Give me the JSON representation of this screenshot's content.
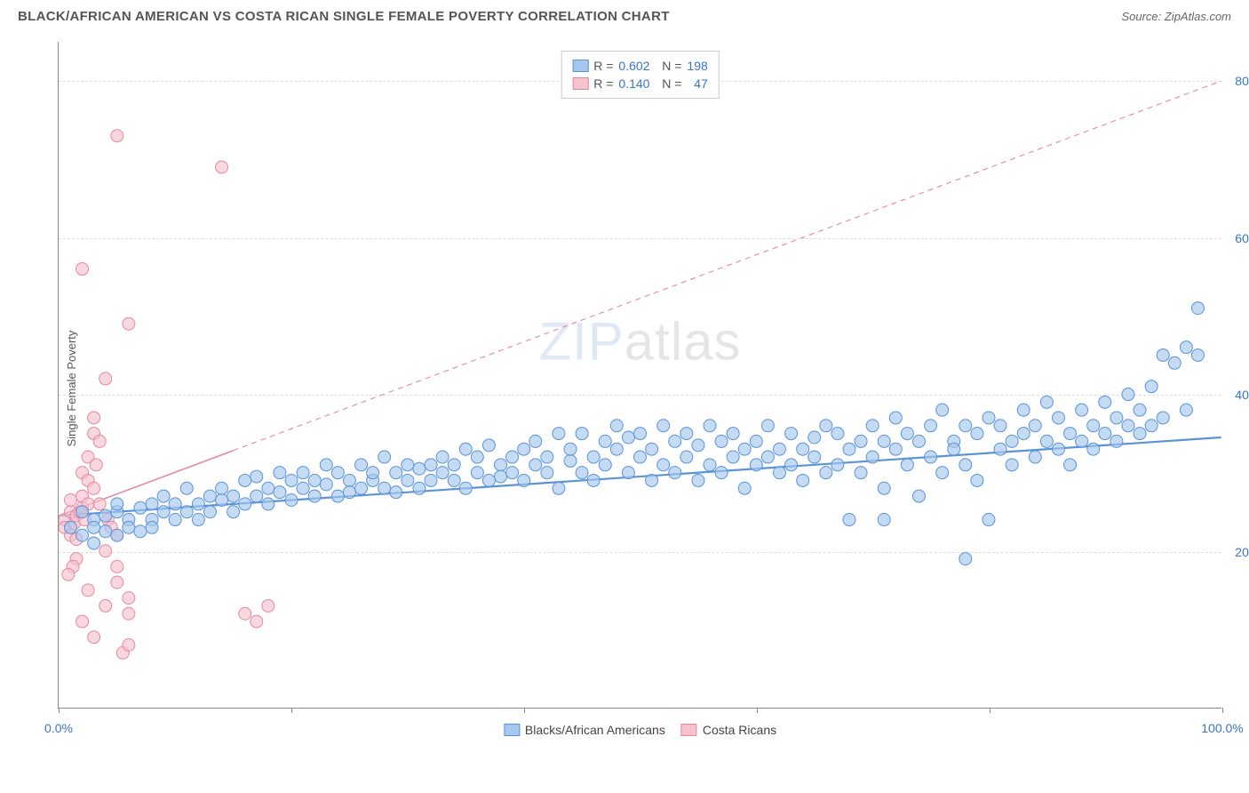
{
  "title": "BLACK/AFRICAN AMERICAN VS COSTA RICAN SINGLE FEMALE POVERTY CORRELATION CHART",
  "source": "Source: ZipAtlas.com",
  "yaxis_label": "Single Female Poverty",
  "watermark_a": "ZIP",
  "watermark_b": "atlas",
  "chart": {
    "type": "scatter",
    "xlim": [
      0,
      100
    ],
    "ylim": [
      0,
      85
    ],
    "x_ticks": [
      0,
      20,
      40,
      60,
      80,
      100
    ],
    "x_tick_labels": {
      "0": "0.0%",
      "100": "100.0%"
    },
    "y_gridlines": [
      20,
      40,
      60,
      80
    ],
    "y_tick_labels": {
      "20": "20.0%",
      "40": "40.0%",
      "60": "60.0%",
      "80": "80.0%"
    },
    "background_color": "#ffffff",
    "grid_color": "#dddddd",
    "series": [
      {
        "name": "Blacks/African Americans",
        "color_fill": "#a6c8ee",
        "color_stroke": "#5a93d6",
        "marker_radius": 7,
        "R": "0.602",
        "N": "198",
        "trend": {
          "x1": 0,
          "y1": 24.5,
          "x2": 100,
          "y2": 34.5,
          "solid_frac": 1.0,
          "stroke_width": 2.2
        },
        "points": [
          [
            1,
            23
          ],
          [
            2,
            22
          ],
          [
            2,
            25
          ],
          [
            3,
            21
          ],
          [
            3,
            24
          ],
          [
            3,
            23
          ],
          [
            4,
            22.5
          ],
          [
            4,
            24.5
          ],
          [
            5,
            25
          ],
          [
            5,
            22
          ],
          [
            5,
            26
          ],
          [
            6,
            24
          ],
          [
            6,
            23
          ],
          [
            7,
            25.5
          ],
          [
            7,
            22.5
          ],
          [
            8,
            24
          ],
          [
            8,
            26
          ],
          [
            8,
            23
          ],
          [
            9,
            25
          ],
          [
            9,
            27
          ],
          [
            10,
            24
          ],
          [
            10,
            26
          ],
          [
            11,
            25
          ],
          [
            11,
            28
          ],
          [
            12,
            26
          ],
          [
            12,
            24
          ],
          [
            13,
            27
          ],
          [
            13,
            25
          ],
          [
            14,
            26.5
          ],
          [
            14,
            28
          ],
          [
            15,
            27
          ],
          [
            15,
            25
          ],
          [
            16,
            26
          ],
          [
            16,
            29
          ],
          [
            17,
            27
          ],
          [
            17,
            29.5
          ],
          [
            18,
            28
          ],
          [
            18,
            26
          ],
          [
            19,
            27.5
          ],
          [
            19,
            30
          ],
          [
            20,
            29
          ],
          [
            20,
            26.5
          ],
          [
            21,
            28
          ],
          [
            21,
            30
          ],
          [
            22,
            27
          ],
          [
            22,
            29
          ],
          [
            23,
            28.5
          ],
          [
            23,
            31
          ],
          [
            24,
            27
          ],
          [
            24,
            30
          ],
          [
            25,
            29
          ],
          [
            25,
            27.5
          ],
          [
            26,
            28
          ],
          [
            26,
            31
          ],
          [
            27,
            29
          ],
          [
            27,
            30
          ],
          [
            28,
            28
          ],
          [
            28,
            32
          ],
          [
            29,
            30
          ],
          [
            29,
            27.5
          ],
          [
            30,
            31
          ],
          [
            30,
            29
          ],
          [
            31,
            28
          ],
          [
            31,
            30.5
          ],
          [
            32,
            31
          ],
          [
            32,
            29
          ],
          [
            33,
            30
          ],
          [
            33,
            32
          ],
          [
            34,
            29
          ],
          [
            34,
            31
          ],
          [
            35,
            28
          ],
          [
            35,
            33
          ],
          [
            36,
            30
          ],
          [
            36,
            32
          ],
          [
            37,
            29
          ],
          [
            37,
            33.5
          ],
          [
            38,
            31
          ],
          [
            38,
            29.5
          ],
          [
            39,
            32
          ],
          [
            39,
            30
          ],
          [
            40,
            33
          ],
          [
            40,
            29
          ],
          [
            41,
            31
          ],
          [
            41,
            34
          ],
          [
            42,
            30
          ],
          [
            42,
            32
          ],
          [
            43,
            28
          ],
          [
            43,
            35
          ],
          [
            44,
            31.5
          ],
          [
            44,
            33
          ],
          [
            45,
            30
          ],
          [
            45,
            35
          ],
          [
            46,
            32
          ],
          [
            46,
            29
          ],
          [
            47,
            34
          ],
          [
            47,
            31
          ],
          [
            48,
            33
          ],
          [
            48,
            36
          ],
          [
            49,
            30
          ],
          [
            49,
            34.5
          ],
          [
            50,
            32
          ],
          [
            50,
            35
          ],
          [
            51,
            29
          ],
          [
            51,
            33
          ],
          [
            52,
            31
          ],
          [
            52,
            36
          ],
          [
            53,
            30
          ],
          [
            53,
            34
          ],
          [
            54,
            35
          ],
          [
            54,
            32
          ],
          [
            55,
            29
          ],
          [
            55,
            33.5
          ],
          [
            56,
            31
          ],
          [
            56,
            36
          ],
          [
            57,
            34
          ],
          [
            57,
            30
          ],
          [
            58,
            32
          ],
          [
            58,
            35
          ],
          [
            59,
            33
          ],
          [
            59,
            28
          ],
          [
            60,
            34
          ],
          [
            60,
            31
          ],
          [
            61,
            32
          ],
          [
            61,
            36
          ],
          [
            62,
            30
          ],
          [
            62,
            33
          ],
          [
            63,
            35
          ],
          [
            63,
            31
          ],
          [
            64,
            33
          ],
          [
            64,
            29
          ],
          [
            65,
            34.5
          ],
          [
            65,
            32
          ],
          [
            66,
            30
          ],
          [
            66,
            36
          ],
          [
            67,
            31
          ],
          [
            67,
            35
          ],
          [
            68,
            24
          ],
          [
            68,
            33
          ],
          [
            69,
            34
          ],
          [
            69,
            30
          ],
          [
            70,
            36
          ],
          [
            70,
            32
          ],
          [
            71,
            28
          ],
          [
            71,
            34
          ],
          [
            72,
            33
          ],
          [
            72,
            37
          ],
          [
            73,
            31
          ],
          [
            73,
            35
          ],
          [
            74,
            27
          ],
          [
            74,
            34
          ],
          [
            75,
            36
          ],
          [
            75,
            32
          ],
          [
            76,
            30
          ],
          [
            76,
            38
          ],
          [
            77,
            34
          ],
          [
            77,
            33
          ],
          [
            78,
            36
          ],
          [
            78,
            31
          ],
          [
            79,
            29
          ],
          [
            79,
            35
          ],
          [
            80,
            24
          ],
          [
            80,
            37
          ],
          [
            81,
            33
          ],
          [
            81,
            36
          ],
          [
            82,
            34
          ],
          [
            82,
            31
          ],
          [
            83,
            38
          ],
          [
            83,
            35
          ],
          [
            84,
            32
          ],
          [
            84,
            36
          ],
          [
            85,
            34
          ],
          [
            85,
            39
          ],
          [
            86,
            37
          ],
          [
            86,
            33
          ],
          [
            87,
            35
          ],
          [
            87,
            31
          ],
          [
            88,
            38
          ],
          [
            88,
            34
          ],
          [
            89,
            36
          ],
          [
            89,
            33
          ],
          [
            90,
            39
          ],
          [
            90,
            35
          ],
          [
            91,
            37
          ],
          [
            91,
            34
          ],
          [
            92,
            40
          ],
          [
            92,
            36
          ],
          [
            93,
            38
          ],
          [
            93,
            35
          ],
          [
            94,
            41
          ],
          [
            94,
            36
          ],
          [
            95,
            45
          ],
          [
            95,
            37
          ],
          [
            96,
            44
          ],
          [
            97,
            46
          ],
          [
            97,
            38
          ],
          [
            98,
            51
          ],
          [
            98,
            45
          ],
          [
            78,
            19
          ],
          [
            71,
            24
          ]
        ]
      },
      {
        "name": "Costa Ricans",
        "color_fill": "#f6c2cd",
        "color_stroke": "#e588a0",
        "marker_radius": 7,
        "R": "0.140",
        "N": "47",
        "trend": {
          "x1": 0,
          "y1": 24.5,
          "x2": 100,
          "y2": 80,
          "solid_frac": 0.15,
          "stroke_width": 1.6
        },
        "points": [
          [
            0.5,
            24
          ],
          [
            0.5,
            23
          ],
          [
            1,
            25
          ],
          [
            1,
            22
          ],
          [
            1,
            26.5
          ],
          [
            1.3,
            23.5
          ],
          [
            1.5,
            24.5
          ],
          [
            1.5,
            21.5
          ],
          [
            1.8,
            25
          ],
          [
            2,
            27
          ],
          [
            2,
            25.5
          ],
          [
            2,
            30
          ],
          [
            2.2,
            24
          ],
          [
            2.5,
            29
          ],
          [
            2.5,
            26
          ],
          [
            2.5,
            32
          ],
          [
            3,
            28
          ],
          [
            3,
            35
          ],
          [
            3,
            37
          ],
          [
            3.2,
            31
          ],
          [
            3.5,
            34
          ],
          [
            3.5,
            26
          ],
          [
            4,
            42
          ],
          [
            4,
            20
          ],
          [
            4.2,
            24
          ],
          [
            4.5,
            23
          ],
          [
            5,
            18
          ],
          [
            5,
            16
          ],
          [
            5,
            22
          ],
          [
            5.5,
            7
          ],
          [
            6,
            49
          ],
          [
            6,
            12
          ],
          [
            6,
            8
          ],
          [
            6,
            14
          ],
          [
            5,
            73
          ],
          [
            1.5,
            19
          ],
          [
            1.2,
            18
          ],
          [
            0.8,
            17
          ],
          [
            2,
            11
          ],
          [
            3,
            9
          ],
          [
            4,
            13
          ],
          [
            2.5,
            15
          ],
          [
            14,
            69
          ],
          [
            2,
            56
          ],
          [
            16,
            12
          ],
          [
            17,
            11
          ],
          [
            18,
            13
          ]
        ]
      }
    ]
  }
}
